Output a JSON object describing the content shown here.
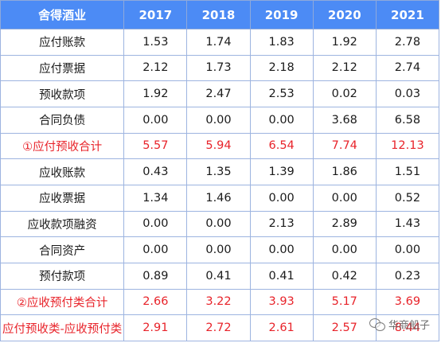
{
  "table": {
    "header": [
      "舍得酒业",
      "2017",
      "2018",
      "2019",
      "2020",
      "2021"
    ],
    "rows": [
      {
        "label": "应付账款",
        "values": [
          "1.53",
          "1.74",
          "1.83",
          "1.92",
          "2.78"
        ],
        "highlight": false
      },
      {
        "label": "应付票据",
        "values": [
          "2.12",
          "1.73",
          "2.18",
          "2.12",
          "2.74"
        ],
        "highlight": false
      },
      {
        "label": "预收款项",
        "values": [
          "1.92",
          "2.47",
          "2.53",
          "0.02",
          "0.03"
        ],
        "highlight": false
      },
      {
        "label": "合同负债",
        "values": [
          "0.00",
          "0.00",
          "0.00",
          "3.68",
          "6.58"
        ],
        "highlight": false
      },
      {
        "label": "①应付预收合计",
        "values": [
          "5.57",
          "5.94",
          "6.54",
          "7.74",
          "12.13"
        ],
        "highlight": true
      },
      {
        "label": "应收账款",
        "values": [
          "0.43",
          "1.35",
          "1.39",
          "1.86",
          "1.51"
        ],
        "highlight": false
      },
      {
        "label": "应收票据",
        "values": [
          "1.34",
          "1.46",
          "0.00",
          "0.00",
          "0.52"
        ],
        "highlight": false
      },
      {
        "label": "应收款项融资",
        "values": [
          "0.00",
          "0.00",
          "2.13",
          "2.89",
          "1.43"
        ],
        "highlight": false
      },
      {
        "label": "合同资产",
        "values": [
          "0.00",
          "0.00",
          "0.00",
          "0.00",
          "0.00"
        ],
        "highlight": false
      },
      {
        "label": "预付款项",
        "values": [
          "0.89",
          "0.41",
          "0.41",
          "0.42",
          "0.23"
        ],
        "highlight": false
      },
      {
        "label": "②应收预付类合计",
        "values": [
          "2.66",
          "3.22",
          "3.93",
          "5.17",
          "3.69"
        ],
        "highlight": true
      },
      {
        "label": "应付预收类-应收预付类",
        "values": [
          "2.91",
          "2.72",
          "2.61",
          "2.57",
          "8.44"
        ],
        "highlight": true
      }
    ],
    "colors": {
      "header_bg": "#4C8BF5",
      "highlight_text": "#E8232A",
      "border": "#8EA9DB"
    }
  },
  "watermark": {
    "text": "华商船子",
    "icon": "wechat-icon"
  }
}
